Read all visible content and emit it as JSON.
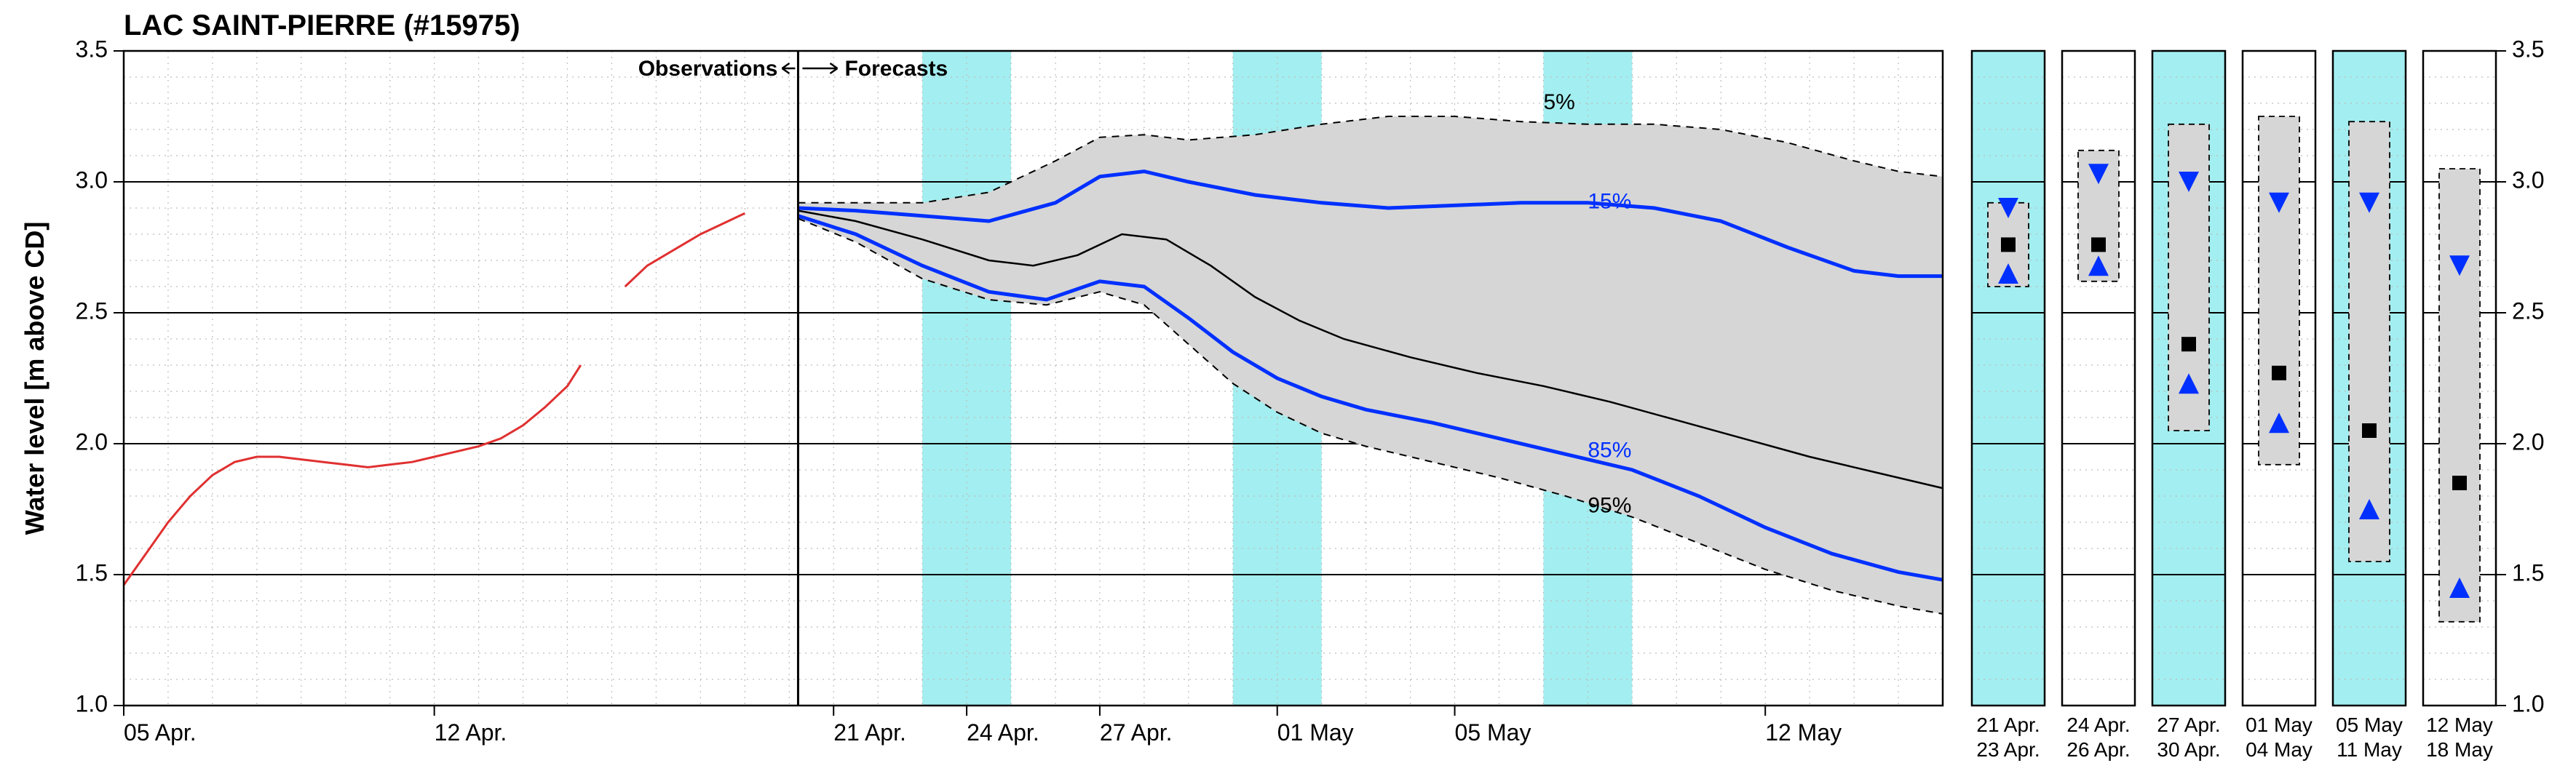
{
  "title": "LAC SAINT-PIERRE (#15975)",
  "ylabel": "Water level [m above CD]",
  "obs_label": "Observations",
  "fcst_label": "Forecasts",
  "colors": {
    "background": "#ffffff",
    "grid_minor": "#bdbdbd",
    "grid_major": "#000000",
    "axis": "#000000",
    "weekend_band": "#a3eef0",
    "weekend_band_opacity": 1.0,
    "obs_line": "#e03030",
    "median": "#000000",
    "band_fill": "#d6d6d6",
    "band_edge": "#000000",
    "blue_line": "#0030ff",
    "text": "#000000",
    "marker_black": "#000000",
    "marker_blue": "#0030ff"
  },
  "font_sizes": {
    "title": 40,
    "axis_label": 36,
    "tick": 32,
    "inline_label": 30,
    "pct_label": 30,
    "panel_date": 28
  },
  "line_widths": {
    "axis": 2.5,
    "grid_major": 2.0,
    "grid_minor": 1.2,
    "obs": 3.0,
    "blue": 5.0,
    "median": 2.5,
    "band_edge": 2.0
  },
  "y_axis": {
    "min": 1.0,
    "max": 3.5,
    "step": 0.5
  },
  "main": {
    "x_days": {
      "min": 0,
      "max": 41
    },
    "x_ticks": [
      {
        "d": 0,
        "label": "05 Apr."
      },
      {
        "d": 7,
        "label": "12 Apr."
      },
      {
        "d": 16,
        "label": "21 Apr."
      },
      {
        "d": 19,
        "label": "24 Apr."
      },
      {
        "d": 22,
        "label": "27 Apr."
      },
      {
        "d": 26,
        "label": "01 May"
      },
      {
        "d": 30,
        "label": "05 May"
      },
      {
        "d": 37,
        "label": "12 May"
      }
    ],
    "weekend_bands": [
      [
        18,
        20
      ],
      [
        25,
        27
      ],
      [
        32,
        34
      ]
    ],
    "divider_day": 15.2,
    "observed": [
      [
        0.0,
        1.46
      ],
      [
        0.5,
        1.58
      ],
      [
        1.0,
        1.7
      ],
      [
        1.5,
        1.8
      ],
      [
        2.0,
        1.88
      ],
      [
        2.5,
        1.93
      ],
      [
        3.0,
        1.95
      ],
      [
        3.5,
        1.95
      ],
      [
        4.0,
        1.94
      ],
      [
        4.5,
        1.93
      ],
      [
        5.0,
        1.92
      ],
      [
        5.5,
        1.91
      ],
      [
        6.0,
        1.92
      ],
      [
        6.5,
        1.93
      ],
      [
        7.0,
        1.95
      ],
      [
        7.5,
        1.97
      ],
      [
        8.0,
        1.99
      ],
      [
        8.5,
        2.02
      ],
      [
        9.0,
        2.07
      ],
      [
        9.5,
        2.14
      ],
      [
        10.0,
        2.22
      ],
      [
        10.3,
        2.3
      ]
    ],
    "observed2": [
      [
        11.3,
        2.6
      ],
      [
        11.8,
        2.68
      ],
      [
        12.4,
        2.74
      ],
      [
        13.0,
        2.8
      ],
      [
        13.5,
        2.84
      ],
      [
        14.0,
        2.88
      ]
    ],
    "p05": [
      [
        15.2,
        2.92
      ],
      [
        16.5,
        2.92
      ],
      [
        18.0,
        2.92
      ],
      [
        19.5,
        2.96
      ],
      [
        21.0,
        3.08
      ],
      [
        22.0,
        3.17
      ],
      [
        23.0,
        3.18
      ],
      [
        24.0,
        3.16
      ],
      [
        25.5,
        3.18
      ],
      [
        27.0,
        3.22
      ],
      [
        28.5,
        3.25
      ],
      [
        30.0,
        3.25
      ],
      [
        31.5,
        3.23
      ],
      [
        33.0,
        3.22
      ],
      [
        34.5,
        3.22
      ],
      [
        36.0,
        3.2
      ],
      [
        37.5,
        3.15
      ],
      [
        39.0,
        3.08
      ],
      [
        40.0,
        3.04
      ],
      [
        41.0,
        3.02
      ]
    ],
    "p15": [
      [
        15.2,
        2.9
      ],
      [
        16.5,
        2.89
      ],
      [
        18.0,
        2.87
      ],
      [
        19.5,
        2.85
      ],
      [
        21.0,
        2.92
      ],
      [
        22.0,
        3.02
      ],
      [
        23.0,
        3.04
      ],
      [
        24.0,
        3.0
      ],
      [
        25.5,
        2.95
      ],
      [
        27.0,
        2.92
      ],
      [
        28.5,
        2.9
      ],
      [
        30.0,
        2.91
      ],
      [
        31.5,
        2.92
      ],
      [
        33.0,
        2.92
      ],
      [
        34.5,
        2.9
      ],
      [
        36.0,
        2.85
      ],
      [
        37.5,
        2.75
      ],
      [
        39.0,
        2.66
      ],
      [
        40.0,
        2.64
      ],
      [
        41.0,
        2.64
      ]
    ],
    "p50": [
      [
        15.2,
        2.89
      ],
      [
        16.5,
        2.85
      ],
      [
        18.0,
        2.78
      ],
      [
        19.5,
        2.7
      ],
      [
        20.5,
        2.68
      ],
      [
        21.5,
        2.72
      ],
      [
        22.5,
        2.8
      ],
      [
        23.5,
        2.78
      ],
      [
        24.5,
        2.68
      ],
      [
        25.5,
        2.56
      ],
      [
        26.5,
        2.47
      ],
      [
        27.5,
        2.4
      ],
      [
        29.0,
        2.33
      ],
      [
        30.5,
        2.27
      ],
      [
        32.0,
        2.22
      ],
      [
        33.5,
        2.16
      ],
      [
        35.0,
        2.09
      ],
      [
        36.5,
        2.02
      ],
      [
        38.0,
        1.95
      ],
      [
        39.5,
        1.89
      ],
      [
        41.0,
        1.83
      ]
    ],
    "p85": [
      [
        15.2,
        2.87
      ],
      [
        16.5,
        2.8
      ],
      [
        18.0,
        2.68
      ],
      [
        19.5,
        2.58
      ],
      [
        20.8,
        2.55
      ],
      [
        22.0,
        2.62
      ],
      [
        23.0,
        2.6
      ],
      [
        24.0,
        2.48
      ],
      [
        25.0,
        2.35
      ],
      [
        26.0,
        2.25
      ],
      [
        27.0,
        2.18
      ],
      [
        28.0,
        2.13
      ],
      [
        29.5,
        2.08
      ],
      [
        31.0,
        2.02
      ],
      [
        32.5,
        1.96
      ],
      [
        34.0,
        1.9
      ],
      [
        35.5,
        1.8
      ],
      [
        37.0,
        1.68
      ],
      [
        38.5,
        1.58
      ],
      [
        40.0,
        1.51
      ],
      [
        41.0,
        1.48
      ]
    ],
    "p95": [
      [
        15.2,
        2.86
      ],
      [
        16.5,
        2.77
      ],
      [
        18.0,
        2.63
      ],
      [
        19.5,
        2.55
      ],
      [
        20.8,
        2.53
      ],
      [
        22.0,
        2.58
      ],
      [
        23.0,
        2.53
      ],
      [
        24.0,
        2.38
      ],
      [
        25.0,
        2.23
      ],
      [
        26.0,
        2.12
      ],
      [
        27.0,
        2.04
      ],
      [
        28.0,
        1.99
      ],
      [
        29.5,
        1.93
      ],
      [
        31.0,
        1.87
      ],
      [
        32.5,
        1.8
      ],
      [
        34.0,
        1.72
      ],
      [
        35.5,
        1.62
      ],
      [
        37.0,
        1.52
      ],
      [
        38.5,
        1.44
      ],
      [
        40.0,
        1.38
      ],
      [
        41.0,
        1.35
      ]
    ],
    "pct_labels": [
      {
        "key": "5%",
        "d": 32.0,
        "y": 3.3
      },
      {
        "key": "15%",
        "d": 33.0,
        "y": 2.92
      },
      {
        "key": "85%",
        "d": 33.0,
        "y": 1.97
      },
      {
        "key": "95%",
        "d": 33.0,
        "y": 1.76
      }
    ]
  },
  "panels": [
    {
      "date_top": "21 Apr.",
      "date_bot": "23 Apr.",
      "weekend": true,
      "p5": 2.92,
      "p15": 2.9,
      "p50": 2.76,
      "p85": 2.65,
      "p95": 2.6
    },
    {
      "date_top": "24 Apr.",
      "date_bot": "26 Apr.",
      "weekend": false,
      "p5": 3.12,
      "p15": 3.03,
      "p50": 2.76,
      "p85": 2.68,
      "p95": 2.62
    },
    {
      "date_top": "27 Apr.",
      "date_bot": "30 Apr.",
      "weekend": true,
      "p5": 3.22,
      "p15": 3.0,
      "p50": 2.38,
      "p85": 2.23,
      "p95": 2.05
    },
    {
      "date_top": "01 May",
      "date_bot": "04 May",
      "weekend": false,
      "p5": 3.25,
      "p15": 2.92,
      "p50": 2.27,
      "p85": 2.08,
      "p95": 1.92
    },
    {
      "date_top": "05 May",
      "date_bot": "11 May",
      "weekend": true,
      "p5": 3.23,
      "p15": 2.92,
      "p50": 2.05,
      "p85": 1.75,
      "p95": 1.55
    },
    {
      "date_top": "12 May",
      "date_bot": "18 May",
      "weekend": false,
      "p5": 3.05,
      "p15": 2.68,
      "p50": 1.85,
      "p85": 1.45,
      "p95": 1.32
    }
  ]
}
